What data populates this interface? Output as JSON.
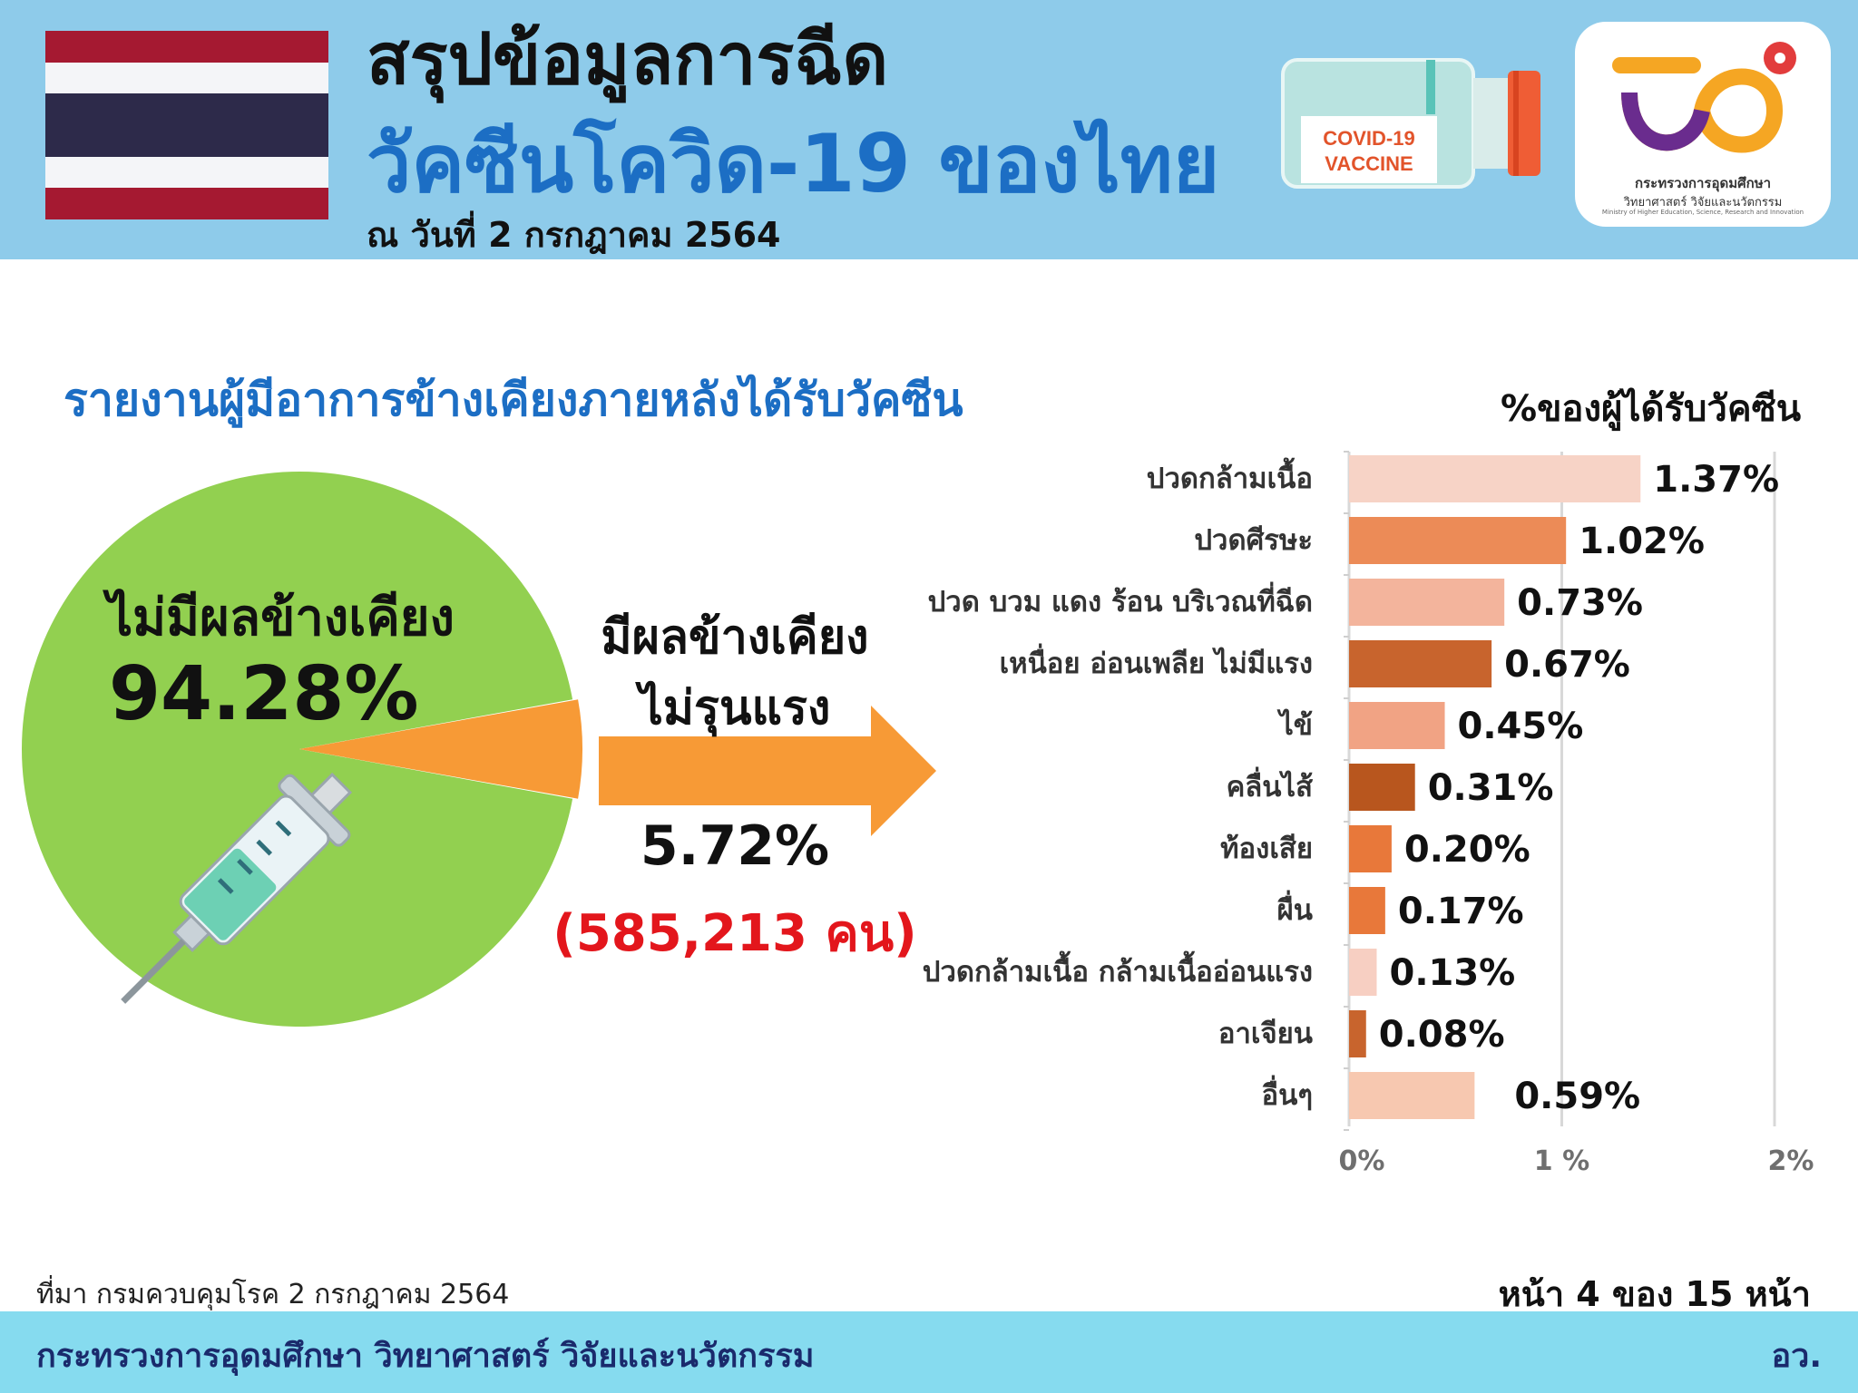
{
  "header": {
    "title_line1": "สรุปข้อมูลการฉีด",
    "title_line2": "วัคซีนโควิด-19 ของไทย",
    "date": "ณ วันที่ 2 กรกฎาคม 2564",
    "vaccine_label_line1": "COVID-19",
    "vaccine_label_line2": "VACCINE",
    "logo_text_line1": "กระทรวงการอุดมศึกษา",
    "logo_text_line2": "วิทยาศาสตร์ วิจัยและนวัตกรรม",
    "logo_text_line3": "Ministry of Higher Education, Science, Research and Innovation"
  },
  "section_title": "รายงานผู้มีอาการข้างเคียงภายหลังได้รับวัคซีน",
  "pie": {
    "no_effect_label": "ไม่มีผลข้างเคียง",
    "no_effect_value": "94.28%",
    "mild_label_line1": "มีผลข้างเคียง",
    "mild_label_line2": "ไม่รุนแรง",
    "mild_value": "5.72%",
    "mild_count": "(585,213 คน)"
  },
  "chart_data": [
    {
      "type": "pie",
      "slices": [
        {
          "label": "ไม่มีผลข้างเคียง",
          "value": 94.28,
          "color": "#92d050"
        },
        {
          "label": "มีผลข้างเคียง ไม่รุนแรง",
          "value": 5.72,
          "color": "#f79a36"
        }
      ]
    },
    {
      "type": "bar",
      "orientation": "horizontal",
      "axis_title": "%ของผู้ได้รับวัคซีน",
      "categories": [
        "ปวดกล้ามเนื้อ",
        "ปวดศีรษะ",
        "ปวด บวม แดง ร้อน บริเวณที่ฉีด",
        "เหนื่อย อ่อนเพลีย ไม่มีแรง",
        "ไข้",
        "คลื่นไส้",
        "ท้องเสีย",
        "ผื่น",
        "ปวดกล้ามเนื้อ กล้ามเนื้ออ่อนแรง",
        "อาเจียน",
        "อื่นๆ"
      ],
      "values": [
        1.37,
        1.02,
        0.73,
        0.67,
        0.45,
        0.31,
        0.2,
        0.17,
        0.13,
        0.08,
        0.59
      ],
      "value_labels": [
        "1.37%",
        "1.02%",
        "0.73%",
        "0.67%",
        "0.45%",
        "0.31%",
        "0.20%",
        "0.17%",
        "0.13%",
        "0.08%",
        "0.59%"
      ],
      "colors": [
        "#f7d3c6",
        "#ec8b57",
        "#f3b49c",
        "#c8642d",
        "#f1a384",
        "#b8561e",
        "#e8783a",
        "#e8783a",
        "#f7cfc2",
        "#c8642d",
        "#f7c8b0"
      ],
      "xlim": [
        0,
        2
      ],
      "xticks": [
        0,
        1,
        2
      ],
      "xtick_labels": [
        "0%",
        "1 %",
        "2%"
      ],
      "grid": true
    }
  ],
  "footer": {
    "source": "ที่มา กรมควบคุมโรค 2 กรกฎาคม 2564",
    "page": "หน้า 4 ของ 15 หน้า",
    "ministry": "กระทรวงการอุดมศึกษา วิทยาศาสตร์ วิจัยและนวัตกรรม",
    "abbr": "อว."
  }
}
